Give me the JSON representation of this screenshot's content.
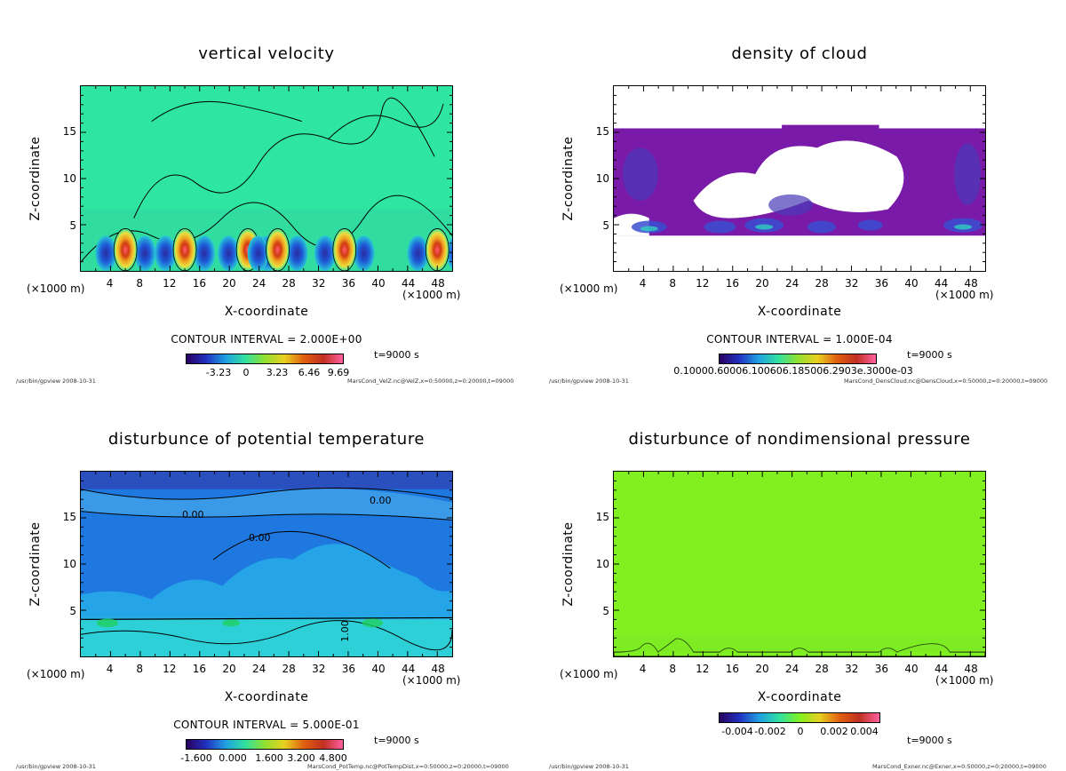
{
  "x_unit_label": "(×1000 m)",
  "x_axis_title": "X-coordinate",
  "y_axis_title": "Z-coordinate",
  "chart_data": [
    {
      "type": "heatmap",
      "title": "vertical velocity",
      "xlabel": "X-coordinate",
      "ylabel": "Z-coordinate",
      "xlim": [
        0,
        50
      ],
      "ylim": [
        0,
        20
      ],
      "x_ticks": [
        "4",
        "8",
        "12",
        "16",
        "20",
        "24",
        "28",
        "32",
        "36",
        "40",
        "44",
        "48"
      ],
      "y_ticks": [
        "5",
        "10",
        "15"
      ],
      "contour_interval": "CONTOUR INTERVAL = 2.000E+00",
      "colorbar_labels": [
        "-3.23",
        "0",
        "3.23",
        "6.46",
        "9.69"
      ],
      "time": "t=9000 s",
      "footer_left": "/usr/bin/gpview  2008-10-31",
      "footer_right": "MarsCond_VelZ.nc@VelZ,x=0:50000,z=0:20000,t=09000",
      "updraft_centers_km": [
        6,
        14,
        22.5,
        26.5,
        35.5,
        48
      ]
    },
    {
      "type": "heatmap",
      "title": "density of cloud",
      "xlabel": "X-coordinate",
      "ylabel": "Z-coordinate",
      "xlim": [
        0,
        50
      ],
      "ylim": [
        0,
        20
      ],
      "x_ticks": [
        "4",
        "8",
        "12",
        "16",
        "20",
        "24",
        "28",
        "32",
        "36",
        "40",
        "44",
        "48"
      ],
      "y_ticks": [
        "5",
        "10",
        "15"
      ],
      "contour_interval": "CONTOUR INTERVAL = 1.000E-04",
      "colorbar_labels": [
        "0.10000.60006.100606.185006.2903e.3000e-03"
      ],
      "time": "t=9000 s",
      "footer_left": "/usr/bin/gpview  2008-10-31",
      "footer_right": "MarsCond_DensCloud.nc@DensCloud,x=0:50000,z=0:20000,t=09000",
      "cloud_z_range_km": [
        4,
        15.5
      ]
    },
    {
      "type": "heatmap",
      "title": "disturbunce of potential temperature",
      "xlabel": "X-coordinate",
      "ylabel": "Z-coordinate",
      "xlim": [
        0,
        50
      ],
      "ylim": [
        0,
        20
      ],
      "x_ticks": [
        "4",
        "8",
        "12",
        "16",
        "20",
        "24",
        "28",
        "32",
        "36",
        "40",
        "44",
        "48"
      ],
      "y_ticks": [
        "5",
        "10",
        "15"
      ],
      "contour_interval": "CONTOUR INTERVAL = 5.000E-01",
      "colorbar_labels": [
        "-1.600",
        "0.000",
        "1.600",
        "3.200",
        "4.800"
      ],
      "contour_labels": [
        "0.00",
        "0.00",
        "0.00",
        "1.00"
      ],
      "time": "t=9000 s",
      "footer_left": "/usr/bin/gpview  2008-10-31",
      "footer_right": "MarsCond_PotTemp.nc@PotTempDist,x=0:50000,z=0:20000,t=09000"
    },
    {
      "type": "heatmap",
      "title": "disturbunce of nondimensional pressure",
      "xlabel": "X-coordinate",
      "ylabel": "Z-coordinate",
      "xlim": [
        0,
        50
      ],
      "ylim": [
        0,
        20
      ],
      "x_ticks": [
        "4",
        "8",
        "12",
        "16",
        "20",
        "24",
        "28",
        "32",
        "36",
        "40",
        "44",
        "48"
      ],
      "y_ticks": [
        "5",
        "10",
        "15"
      ],
      "contour_interval": "",
      "colorbar_labels": [
        "-0.004",
        "-0.002",
        "0",
        "0.002",
        "0.004"
      ],
      "time": "t=9000 s",
      "footer_left": "/usr/bin/gpview  2008-10-31",
      "footer_right": "MarsCond_Exner.nc@Exner,x=0:50000,z=0:20000,t=09000"
    }
  ]
}
